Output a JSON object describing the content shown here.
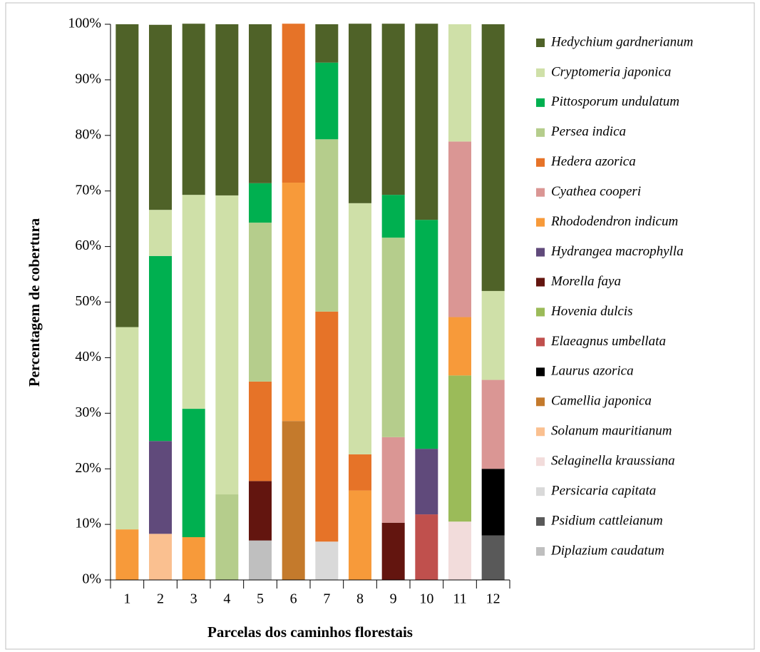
{
  "chart_data": {
    "type": "stacked_bar_100",
    "xlabel": "Parcelas dos caminhos florestais",
    "ylabel": "Percentagem de cobertura",
    "categories": [
      "1",
      "2",
      "3",
      "4",
      "5",
      "6",
      "7",
      "8",
      "9",
      "10",
      "11",
      "12"
    ],
    "ylim": [
      0,
      100
    ],
    "yticks": [
      {
        "value": 0,
        "label": "0%"
      },
      {
        "value": 10,
        "label": "10%"
      },
      {
        "value": 20,
        "label": "20%"
      },
      {
        "value": 30,
        "label": "30%"
      },
      {
        "value": 40,
        "label": "40%"
      },
      {
        "value": 50,
        "label": "50%"
      },
      {
        "value": 60,
        "label": "60%"
      },
      {
        "value": 70,
        "label": "70%"
      },
      {
        "value": 80,
        "label": "80%"
      },
      {
        "value": 90,
        "label": "90%"
      },
      {
        "value": 100,
        "label": "100%"
      }
    ],
    "legend": "right",
    "series": [
      {
        "name": "Hedychium gardnerianum",
        "color": "#4f6228",
        "values": [
          54.5,
          33.3,
          30.8,
          30.8,
          28.6,
          null,
          6.9,
          32.3,
          30.8,
          35.3,
          null,
          48
        ]
      },
      {
        "name": "Cryptomeria japonica",
        "color": "#cfe0a8",
        "values": [
          36.4,
          8.3,
          38.5,
          53.8,
          null,
          null,
          null,
          45.2,
          null,
          null,
          21.1,
          16
        ]
      },
      {
        "name": "Pittosporum undulatum",
        "color": "#00b050",
        "values": [
          null,
          33.3,
          23.1,
          null,
          7.1,
          null,
          13.8,
          null,
          7.7,
          41.2,
          null,
          null
        ]
      },
      {
        "name": "Persea indica",
        "color": "#b5cd8c",
        "values": [
          null,
          null,
          null,
          15.4,
          28.6,
          null,
          31.0,
          null,
          35.9,
          null,
          null,
          null
        ]
      },
      {
        "name": "Hedera azorica",
        "color": "#e67328",
        "values": [
          null,
          null,
          null,
          null,
          17.9,
          28.6,
          41.4,
          6.5,
          null,
          null,
          null,
          null
        ]
      },
      {
        "name": "Cyathea cooperi",
        "color": "#da9694",
        "values": [
          null,
          null,
          null,
          null,
          null,
          null,
          null,
          null,
          15.4,
          null,
          31.6,
          16
        ]
      },
      {
        "name": "Rhododendron indicum",
        "color": "#f79a3a",
        "values": [
          9.1,
          null,
          7.7,
          null,
          null,
          42.9,
          null,
          16.1,
          null,
          null,
          10.5,
          null
        ]
      },
      {
        "name": "Hydrangea macrophylla",
        "color": "#604a7b",
        "values": [
          null,
          16.7,
          null,
          null,
          null,
          null,
          null,
          null,
          null,
          11.8,
          null,
          null
        ]
      },
      {
        "name": "Morella faya",
        "color": "#63150f",
        "values": [
          null,
          null,
          null,
          null,
          10.7,
          null,
          null,
          null,
          10.3,
          null,
          null,
          null
        ]
      },
      {
        "name": "Hovenia dulcis",
        "color": "#9bbb59",
        "values": [
          null,
          null,
          null,
          null,
          null,
          null,
          null,
          null,
          null,
          null,
          26.3,
          null
        ]
      },
      {
        "name": "Elaeagnus umbellata",
        "color": "#c0504d",
        "values": [
          null,
          null,
          null,
          null,
          null,
          null,
          null,
          null,
          null,
          11.8,
          null,
          null
        ]
      },
      {
        "name": "Laurus azorica",
        "color": "#000000",
        "values": [
          null,
          null,
          null,
          null,
          null,
          null,
          null,
          null,
          null,
          null,
          null,
          12
        ]
      },
      {
        "name": "Camellia japonica",
        "color": "#c47a2c",
        "values": [
          null,
          null,
          null,
          null,
          null,
          28.6,
          null,
          null,
          null,
          null,
          null,
          null
        ]
      },
      {
        "name": "Solanum mauritianum",
        "color": "#fac090",
        "values": [
          null,
          8.3,
          null,
          null,
          null,
          null,
          null,
          null,
          null,
          null,
          null,
          null
        ]
      },
      {
        "name": "Selaginella kraussiana",
        "color": "#f2dcdb",
        "values": [
          null,
          null,
          null,
          null,
          null,
          null,
          null,
          null,
          null,
          null,
          10.5,
          null
        ]
      },
      {
        "name": "Persicaria capitata",
        "color": "#d9d9d9",
        "values": [
          null,
          null,
          null,
          null,
          null,
          null,
          6.9,
          null,
          null,
          null,
          null,
          null
        ]
      },
      {
        "name": "Psidium cattleianum",
        "color": "#595959",
        "values": [
          null,
          null,
          null,
          null,
          null,
          null,
          null,
          null,
          null,
          null,
          null,
          8
        ]
      },
      {
        "name": "Diplazium caudatum",
        "color": "#bfbfbf",
        "values": [
          null,
          null,
          null,
          null,
          7.1,
          null,
          null,
          null,
          null,
          null,
          null,
          null
        ]
      }
    ]
  }
}
